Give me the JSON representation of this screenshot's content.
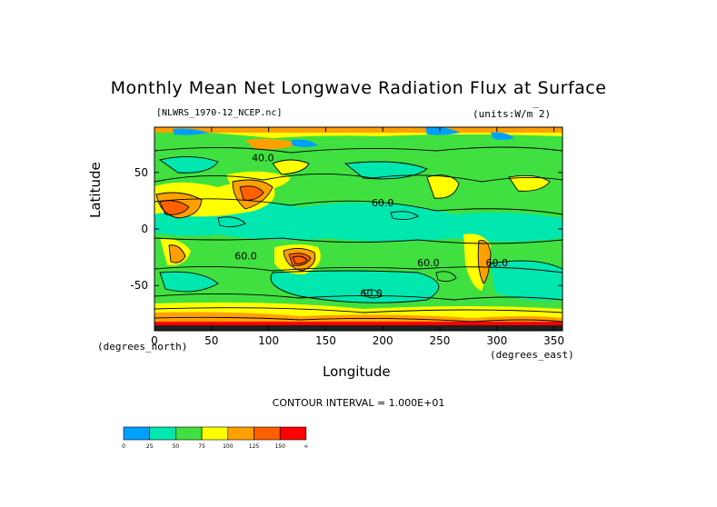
{
  "chart_data": {
    "type": "heatmap",
    "title": "Monthly Mean Net Longwave Radiation Flux at Surface",
    "file": "[NLWRS_1970-12_NCEP.nc]",
    "units": "(units:W/m^2)",
    "xlabel": "Longitude",
    "ylabel": "Latitude",
    "x_unit": "(degrees_east)",
    "y_unit": "(degrees_north)",
    "xlim": [
      0,
      357.5
    ],
    "ylim": [
      -90,
      90
    ],
    "x_ticks": [
      "0",
      "50",
      "100",
      "150",
      "200",
      "250",
      "300",
      "350"
    ],
    "y_ticks": [
      "50",
      "0",
      "-50"
    ],
    "contour_interval": "CONTOUR INTERVAL = 1.000E+01",
    "contour_labels": [
      "40.0",
      "60.0",
      "60.0",
      "60.0",
      "60.0",
      "60.0"
    ],
    "colorbar": {
      "labels": [
        "0",
        "25",
        "50",
        "75",
        "100",
        "125",
        "150",
        "∞"
      ],
      "colors": [
        "#00a0ff",
        "#00e8b0",
        "#40e040",
        "#ffff00",
        "#ffa000",
        "#ff6000",
        "#ff0000"
      ]
    }
  }
}
